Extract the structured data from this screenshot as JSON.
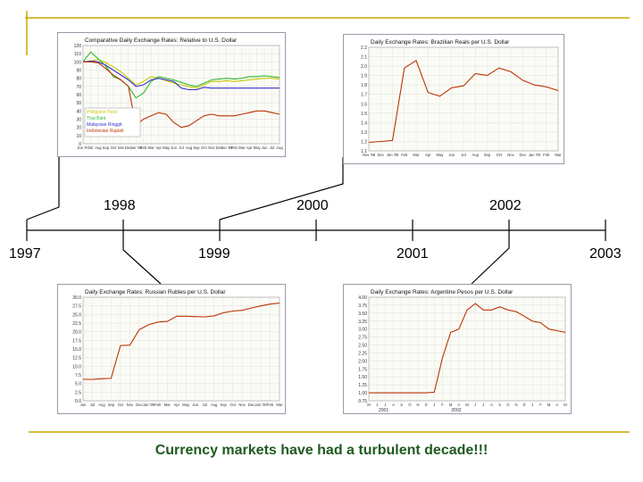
{
  "timeline": {
    "years_bottom": [
      "1997",
      "1999",
      "2001",
      "2003"
    ],
    "years_top": [
      "1998",
      "2000",
      "2002"
    ],
    "line_color": "#000000",
    "accent_color": "#c8a800"
  },
  "caption": "Currency markets have had a turbulent decade!!!",
  "caption_color": "#1f5a1f",
  "chart_data": [
    {
      "type": "line",
      "title": "Comparative Daily Exchange Rates: Relative to U.S. Dollar",
      "y_ticks": [
        "120",
        "110",
        "100",
        "90",
        "80",
        "70",
        "60",
        "50",
        "40",
        "30",
        "20",
        "10",
        "0"
      ],
      "ylim": [
        0,
        120
      ],
      "x_ticks": [
        "Jun '97",
        "Jul",
        "Aug",
        "Sep",
        "Oct",
        "Nov",
        "Dec",
        "Jan '98",
        "Feb",
        "Mar",
        "Apr",
        "May",
        "Jun",
        "Jul",
        "Aug",
        "Sep",
        "Oct",
        "Nov",
        "Dec",
        "Jan '99",
        "Feb",
        "Mar",
        "Apr",
        "May",
        "Jun",
        "Jul",
        "Aug"
      ],
      "legend": [
        "Philippine Peso",
        "Thai Baht",
        "Malaysian Ringgit",
        "Indonesian Rupiah"
      ],
      "legend_position": "bottom-left",
      "series": [
        {
          "name": "Philippine Peso",
          "color": "#c8c800",
          "values": [
            100,
            101,
            103,
            99,
            94,
            88,
            80,
            72,
            76,
            82,
            80,
            77,
            74,
            72,
            70,
            68,
            72,
            76,
            76,
            77,
            76,
            77,
            78,
            79,
            80,
            80,
            79
          ]
        },
        {
          "name": "Thai Baht",
          "color": "#33bb33",
          "values": [
            100,
            112,
            104,
            95,
            82,
            78,
            70,
            56,
            62,
            76,
            82,
            80,
            78,
            75,
            72,
            70,
            74,
            78,
            79,
            80,
            79,
            80,
            82,
            82,
            83,
            82,
            81
          ]
        },
        {
          "name": "Malaysian Ringgit",
          "color": "#3333cc",
          "values": [
            100,
            101,
            100,
            96,
            90,
            84,
            78,
            70,
            72,
            78,
            80,
            78,
            76,
            68,
            66,
            66,
            69,
            68,
            68,
            68,
            68,
            68,
            68,
            68,
            68,
            68,
            68
          ]
        },
        {
          "name": "Indonesian Rupiah",
          "color": "#bb3300",
          "values": [
            100,
            100,
            99,
            92,
            84,
            78,
            70,
            22,
            30,
            34,
            38,
            36,
            26,
            20,
            22,
            28,
            34,
            36,
            34,
            34,
            34,
            36,
            38,
            40,
            40,
            38,
            36
          ]
        }
      ]
    },
    {
      "type": "line",
      "title": "Daily Exchange Rates: Brazilian Reals per U.S. Dollar",
      "y_ticks": [
        "2.2",
        "2.1",
        "2.0",
        "1.9",
        "1.8",
        "1.7",
        "1.6",
        "1.5",
        "1.4",
        "1.3",
        "1.2",
        "1.1"
      ],
      "ylim": [
        1.1,
        2.2
      ],
      "x_ticks": [
        "Nov '98",
        "Dec",
        "Jan '99",
        "Feb",
        "Mar",
        "Apr",
        "May",
        "Jun",
        "Jul",
        "Aug",
        "Sep",
        "Oct",
        "Nov",
        "Dec",
        "Jan '00",
        "Feb",
        "Mar"
      ],
      "series": [
        {
          "name": "",
          "color": "#bb3300",
          "values": [
            1.19,
            1.2,
            1.21,
            1.98,
            2.06,
            1.72,
            1.68,
            1.77,
            1.79,
            1.92,
            1.9,
            1.98,
            1.94,
            1.85,
            1.8,
            1.78,
            1.74
          ]
        }
      ]
    },
    {
      "type": "line",
      "title": "Daily Exchange Rates: Russian Rubles per U.S. Dollar",
      "y_ticks": [
        "30.0",
        "27.5",
        "25.0",
        "22.5",
        "20.0",
        "17.5",
        "15.0",
        "12.5",
        "10.0",
        "7.5",
        "5.0",
        "2.5",
        "0.0"
      ],
      "ylim": [
        0,
        30
      ],
      "x_ticks": [
        "Jun",
        "Jul",
        "Aug",
        "Sep",
        "Oct",
        "Nov",
        "Dec",
        "Jan '99",
        "Feb",
        "Mar",
        "Apr",
        "May",
        "Jun",
        "Jul",
        "Aug",
        "Sep",
        "Oct",
        "Nov",
        "Dec",
        "Jan '00",
        "Feb",
        "Mar"
      ],
      "series": [
        {
          "name": "",
          "color": "#bb3300",
          "values": [
            6.2,
            6.2,
            6.4,
            6.5,
            16.0,
            16.1,
            20.6,
            22.0,
            22.8,
            23.0,
            24.5,
            24.5,
            24.4,
            24.3,
            24.6,
            25.5,
            26.0,
            26.2,
            26.9,
            27.5,
            28.0,
            28.3
          ]
        }
      ]
    },
    {
      "type": "line",
      "title": "Daily Exchange Rates: Argentine Pesos per U.S. Dollar",
      "y_ticks": [
        "4.00",
        "3.75",
        "3.50",
        "3.25",
        "3.00",
        "2.75",
        "2.50",
        "2.25",
        "2.00",
        "1.75",
        "1.50",
        "1.25",
        "1.00",
        "0.75"
      ],
      "ylim": [
        0.75,
        4.0
      ],
      "x_ticks": [
        "M",
        "J",
        "J",
        "A",
        "S",
        "O",
        "N",
        "D",
        "J",
        "F",
        "M",
        "A",
        "M",
        "J",
        "J",
        "A",
        "S",
        "O",
        "N",
        "D",
        "J",
        "F",
        "M",
        "A",
        "M"
      ],
      "x_group_labels": [
        "2001",
        "2002"
      ],
      "series": [
        {
          "name": "",
          "color": "#bb3300",
          "values": [
            1.0,
            1.0,
            1.0,
            1.0,
            1.0,
            1.0,
            1.0,
            1.0,
            1.02,
            2.1,
            2.9,
            3.0,
            3.6,
            3.8,
            3.6,
            3.6,
            3.7,
            3.6,
            3.55,
            3.4,
            3.25,
            3.2,
            3.0,
            2.95,
            2.9
          ]
        }
      ]
    }
  ]
}
